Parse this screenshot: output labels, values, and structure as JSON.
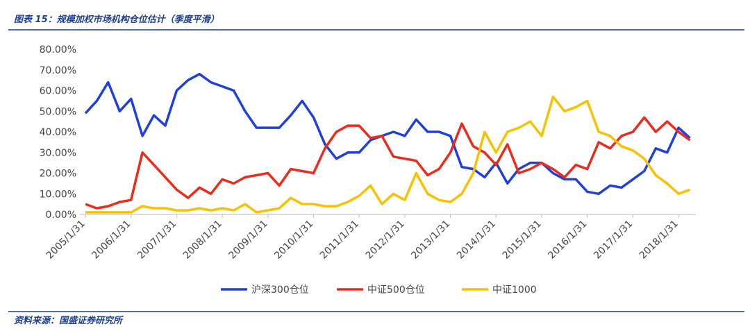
{
  "chart_data": {
    "type": "line",
    "title": "图表 15：规模加权市场机构仓位估计（季度平滑）",
    "source": "资料来源：国盛证券研究所",
    "categories": [
      "2005/1/31",
      null,
      null,
      null,
      "2006/1/31",
      null,
      null,
      null,
      "2007/1/31",
      null,
      null,
      null,
      "2008/1/31",
      null,
      null,
      null,
      "2009/1/31",
      null,
      null,
      null,
      "2010/1/31",
      null,
      null,
      null,
      "2011/1/31",
      null,
      null,
      null,
      "2012/1/31",
      null,
      null,
      null,
      "2013/1/31",
      null,
      null,
      null,
      "2014/1/31",
      null,
      null,
      null,
      "2015/1/31",
      null,
      null,
      null,
      "2016/1/31",
      null,
      null,
      null,
      "2017/1/31",
      null,
      null,
      null,
      "2018/1/31",
      null
    ],
    "series": [
      {
        "name": "沪深300仓位",
        "color": "#1f3fe0",
        "values": [
          49,
          55,
          64,
          50,
          56,
          38,
          48,
          43,
          60,
          65,
          68,
          64,
          62,
          60,
          50,
          42,
          42,
          42,
          48,
          55,
          47,
          34,
          27,
          30,
          30,
          36,
          38,
          40,
          38,
          46,
          40,
          40,
          38,
          23,
          22,
          18,
          25,
          15,
          22,
          25,
          25,
          20,
          17,
          17,
          11,
          10,
          14,
          13,
          17,
          21,
          32,
          30,
          42,
          37
        ]
      },
      {
        "name": "中证500仓位",
        "color": "#ee2a1b",
        "values": [
          5,
          3,
          4,
          6,
          7,
          30,
          24,
          18,
          12,
          8,
          13,
          10,
          17,
          15,
          18,
          19,
          20,
          14,
          22,
          21,
          20,
          32,
          40,
          43,
          43,
          37,
          38,
          28,
          27,
          26,
          19,
          22,
          30,
          44,
          33,
          30,
          24,
          34,
          20,
          22,
          25,
          22,
          18,
          24,
          22,
          35,
          32,
          38,
          40,
          47,
          40,
          45,
          40,
          36
        ]
      },
      {
        "name": "中证1000",
        "color": "#f7c200",
        "values": [
          1,
          1,
          1,
          1,
          1,
          4,
          3,
          3,
          2,
          2,
          3,
          2,
          3,
          2,
          5,
          1,
          2,
          3,
          8,
          5,
          5,
          4,
          4,
          6,
          9,
          14,
          5,
          10,
          7,
          20,
          10,
          7,
          6,
          10,
          20,
          40,
          30,
          40,
          42,
          45,
          38,
          57,
          50,
          52,
          55,
          40,
          38,
          33,
          31,
          27,
          19,
          15,
          10,
          12
        ]
      }
    ],
    "ylim": [
      0,
      80
    ],
    "yticks": [
      {
        "value": 0,
        "label": "0.00%"
      },
      {
        "value": 10,
        "label": "10.00%"
      },
      {
        "value": 20,
        "label": "20.00%"
      },
      {
        "value": 30,
        "label": "30.00%"
      },
      {
        "value": 40,
        "label": "40.00%"
      },
      {
        "value": 50,
        "label": "50.00%"
      },
      {
        "value": 60,
        "label": "60.00%"
      },
      {
        "value": 70,
        "label": "70.00%"
      },
      {
        "value": 80,
        "label": "80.00%"
      }
    ],
    "legend": "bottom"
  }
}
